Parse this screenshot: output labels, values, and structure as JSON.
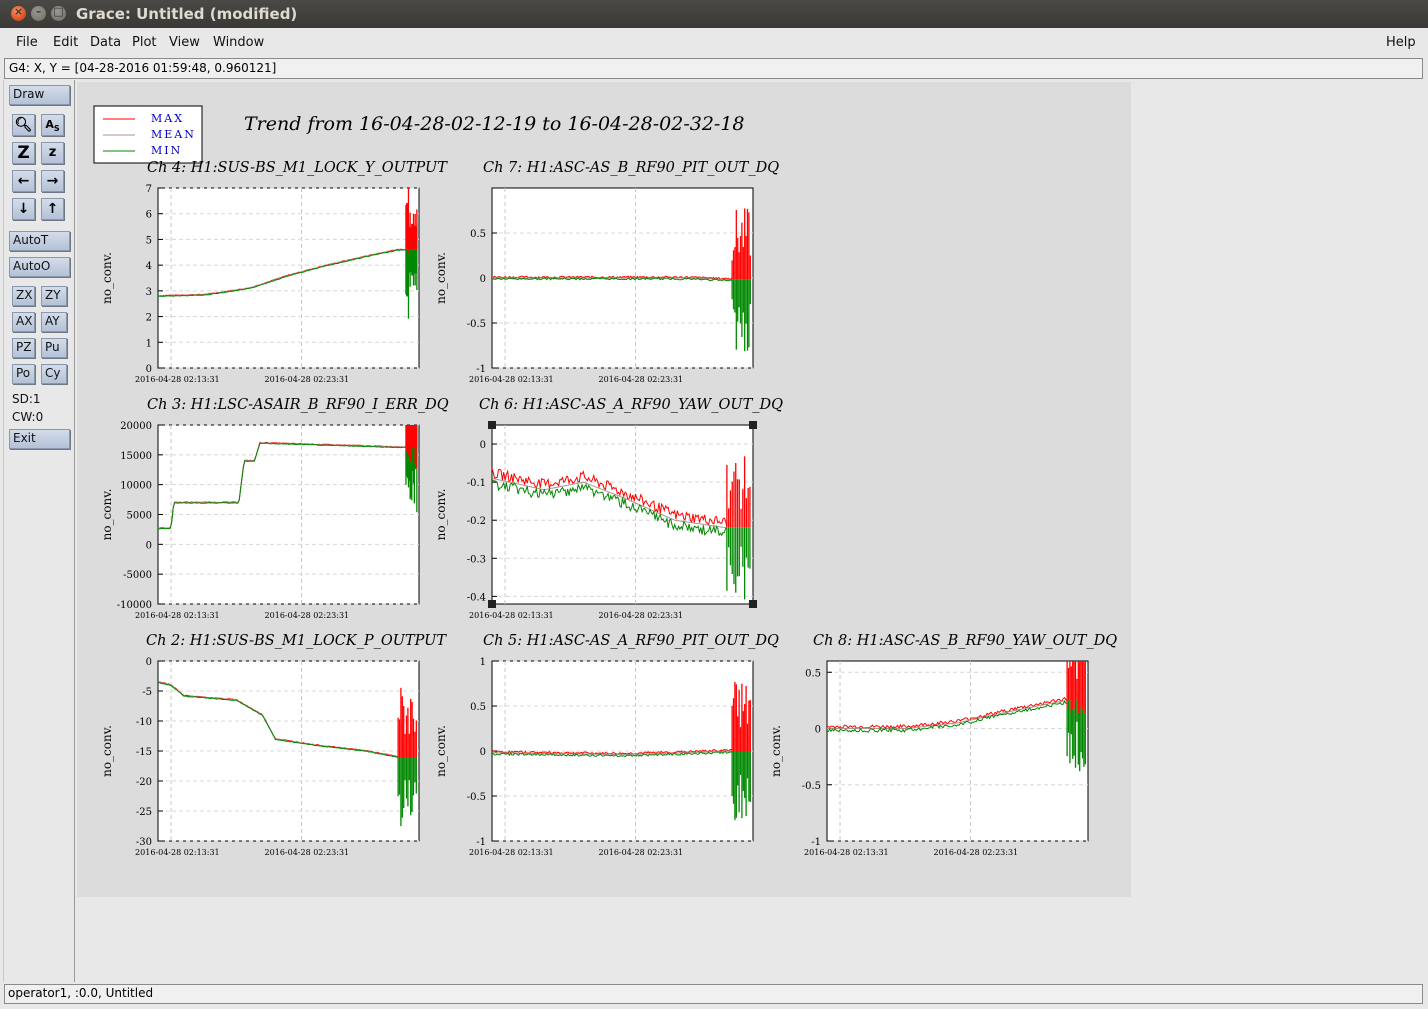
{
  "window": {
    "title": "Grace: Untitled (modified)"
  },
  "menu": {
    "file": "File",
    "edit": "Edit",
    "data": "Data",
    "plot": "Plot",
    "view": "View",
    "window": "Window",
    "help": "Help"
  },
  "coord_readout": "G4: X, Y = [04-28-2016 01:59:48, 0.960121]",
  "toolbar": {
    "draw": "Draw",
    "autot": "AutoT",
    "autoo": "AutoO",
    "zx": "ZX",
    "zy": "ZY",
    "ax": "AX",
    "ay": "AY",
    "pz": "PZ",
    "pu": "Pu",
    "po": "Po",
    "cy": "Cy",
    "sd": "SD:1",
    "cw": "CW:0",
    "exit": "Exit",
    "icons": [
      "zoom-icon",
      "autoscale-text-icon",
      "zoom-in-icon",
      "zoom-out-icon",
      "pan-left-icon",
      "pan-right-icon",
      "pan-down-icon",
      "pan-up-icon"
    ]
  },
  "status": "operator1, :0.0, Untitled",
  "colors": {
    "max": "#ff0000",
    "mean": "#b09090",
    "min": "#008800",
    "legend_text": "#0000cc"
  },
  "chart_data": {
    "type": "line",
    "title": "Trend from 16-04-28-02-12-19 to 16-04-28-02-32-18",
    "legend": [
      "MAX",
      "MEAN",
      "MIN"
    ],
    "legend_placement": "top-left",
    "x_tick_labels": [
      "2016-04-28 02:13:31",
      "2016-04-28 02:23:31"
    ],
    "grid": true,
    "panels": [
      {
        "id": "ch4",
        "title": "Ch 4: H1:SUS-BS_M1_LOCK_Y_OUTPUT",
        "ylabel": "no_conv.",
        "ylim": [
          0,
          7
        ],
        "yticks": [
          "0",
          "1",
          "2",
          "3",
          "4",
          "5",
          "6",
          "7"
        ],
        "x": [
          0,
          0.18,
          0.35,
          0.5,
          0.65,
          0.8,
          0.92,
          0.95
        ],
        "mean": [
          2.8,
          2.85,
          3.1,
          3.6,
          4.0,
          4.35,
          4.6,
          4.6
        ]
      },
      {
        "id": "ch7",
        "title": "Ch 7: H1:ASC-AS_B_RF90_PIT_OUT_DQ",
        "ylabel": "no_conv.",
        "ylim": [
          -1,
          1
        ],
        "yticks": [
          "-1",
          "-0.5",
          "0",
          "0.5"
        ],
        "x": [
          0,
          0.25,
          0.5,
          0.75,
          0.92
        ],
        "mean": [
          0.0,
          0.0,
          0.0,
          0.0,
          -0.02
        ]
      },
      {
        "id": "ch3",
        "title": "Ch 3: H1:LSC-ASAIR_B_RF90_I_ERR_DQ",
        "ylabel": "no_conv.",
        "ylim": [
          -10000,
          20000
        ],
        "yticks": [
          "-10000",
          "-5000",
          "0",
          "5000",
          "10000",
          "15000",
          "20000"
        ],
        "x": [
          0,
          0.05,
          0.06,
          0.31,
          0.33,
          0.37,
          0.39,
          0.92,
          0.95
        ],
        "mean": [
          2700,
          2700,
          7000,
          7000,
          14000,
          14000,
          17000,
          16300,
          16300
        ]
      },
      {
        "id": "ch6",
        "title": "Ch 6: H1:ASC-AS_A_RF90_YAW_OUT_DQ",
        "ylabel": "no_conv.",
        "ylim": [
          -0.42,
          0.05
        ],
        "yticks": [
          "-0.4",
          "-0.3",
          "-0.2",
          "-0.1",
          "0"
        ],
        "x": [
          0,
          0.2,
          0.35,
          0.5,
          0.7,
          0.9
        ],
        "mean": [
          -0.09,
          -0.12,
          -0.1,
          -0.14,
          -0.2,
          -0.22
        ]
      },
      {
        "id": "ch2",
        "title": "Ch 2: H1:SUS-BS_M1_LOCK_P_OUTPUT",
        "ylabel": "no_conv.",
        "ylim": [
          -30,
          0
        ],
        "yticks": [
          "-30",
          "-25",
          "-20",
          "-15",
          "-10",
          "-5",
          "0"
        ],
        "x": [
          0,
          0.05,
          0.1,
          0.3,
          0.4,
          0.45,
          0.6,
          0.8,
          0.92
        ],
        "mean": [
          -3.5,
          -4,
          -5.8,
          -6.5,
          -9,
          -13,
          -14,
          -15,
          -16
        ]
      },
      {
        "id": "ch5",
        "title": "Ch 5: H1:ASC-AS_A_RF90_PIT_OUT_DQ",
        "ylabel": "no_conv.",
        "ylim": [
          -1,
          1
        ],
        "yticks": [
          "-1",
          "-0.5",
          "0",
          "0.5",
          "1"
        ],
        "x": [
          0,
          0.25,
          0.5,
          0.75,
          0.92
        ],
        "mean": [
          -0.02,
          -0.03,
          -0.04,
          -0.02,
          0.0
        ]
      },
      {
        "id": "ch8",
        "title": "Ch 8: H1:ASC-AS_B_RF90_YAW_OUT_DQ",
        "ylabel": "no_conv.",
        "ylim": [
          -1,
          0.6
        ],
        "yticks": [
          "-1",
          "-0.5",
          "0",
          "0.5"
        ],
        "x": [
          0,
          0.3,
          0.5,
          0.7,
          0.85,
          0.92
        ],
        "mean": [
          0.0,
          0.0,
          0.05,
          0.15,
          0.22,
          0.25
        ]
      }
    ]
  }
}
